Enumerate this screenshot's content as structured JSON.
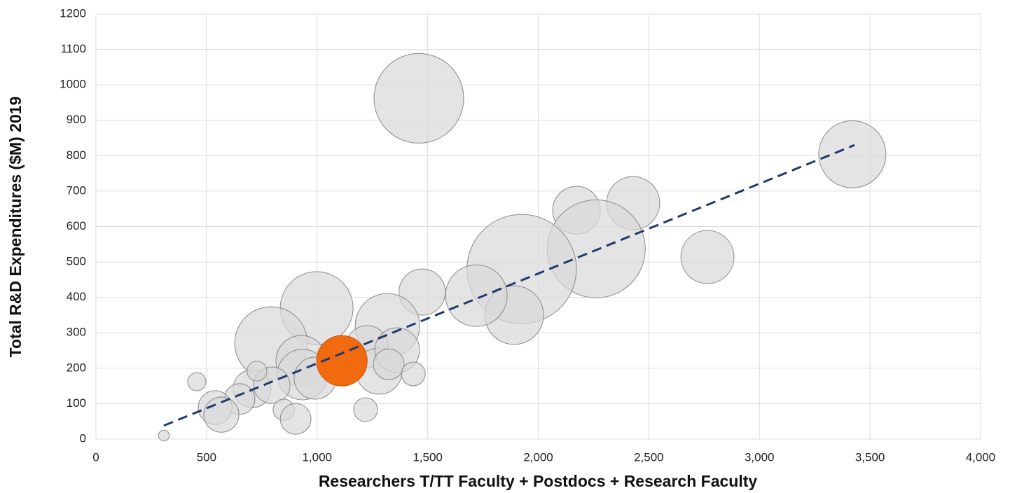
{
  "chart_data": {
    "type": "bubble",
    "x_label": "Researchers T/TT Faculty + Postdocs + Research Faculty",
    "y_label": "Total R&D Expenditures ($M) 2019",
    "xlim": [
      0,
      4000
    ],
    "ylim": [
      0,
      1200
    ],
    "xticks": [
      0,
      500,
      {
        "value": 1000,
        "label": "1,000"
      },
      {
        "value": 1500,
        "label": "1,500"
      },
      {
        "value": 2000,
        "label": "2,000"
      },
      {
        "value": 2500,
        "label": "2,500"
      },
      {
        "value": 3000,
        "label": "3,000"
      },
      {
        "value": 3500,
        "label": "3,500"
      },
      {
        "value": 4000,
        "label": "4,000"
      }
    ],
    "yticks": [
      0,
      100,
      200,
      300,
      400,
      500,
      600,
      700,
      800,
      900,
      1000,
      1100,
      1200
    ],
    "grid": true,
    "series": [
      {
        "color": "#d9d9d9",
        "x": [
          1460,
          3420,
          2429,
          2173,
          2262,
          1925,
          1891,
          1720,
          2765,
          1475,
          998,
          792,
          1318,
          1226,
          1280,
          1362,
          1324,
          1435,
          928,
          934,
          991,
          706,
          795,
          728,
          649,
          539,
          567,
          456,
          849,
          903,
          1219,
          307
        ],
        "values": [
          962,
          804,
          666,
          646,
          537,
          480,
          350,
          405,
          514,
          415,
          370,
          271,
          320,
          261,
          192,
          251,
          211,
          184,
          221,
          182,
          172,
          142,
          152,
          192,
          113,
          89,
          69,
          162,
          83,
          57,
          83,
          10
        ],
        "sizes": [
          41,
          23,
          14.4,
          11.6,
          49,
          61,
          17.6,
          19.4,
          14.4,
          10.9,
          27,
          27,
          21.2,
          9,
          10.9,
          10.2,
          4.8,
          2.9,
          13,
          13,
          9,
          7.3,
          6.8,
          2,
          4.8,
          5.8,
          6.3,
          1.7,
          2.3,
          4.8,
          2.9,
          0.6
        ]
      },
      {
        "color": "#f26a10",
        "x": [
          1112
        ],
        "values": [
          221
        ],
        "sizes": [
          13
        ]
      }
    ],
    "trendline": {
      "color": "#1f3a6e",
      "x": [
        307,
        3430
      ],
      "values": [
        38,
        830
      ]
    }
  }
}
